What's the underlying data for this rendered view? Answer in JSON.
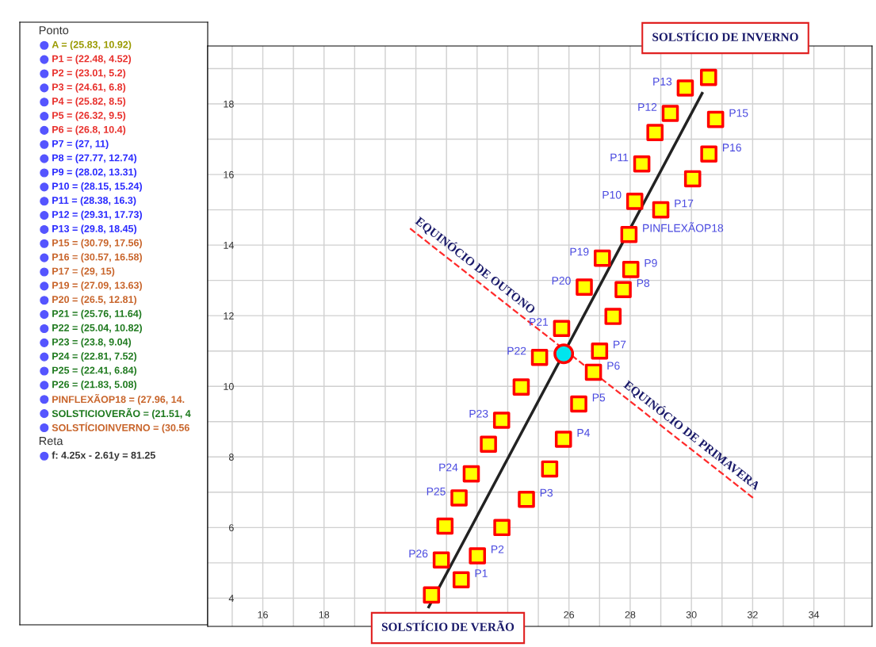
{
  "chart_data": [
    {
      "type": "other",
      "categories": [
        "Ponto",
        "A = (25.83, 10.92)",
        "P1 = (22.48, 4.52)",
        "P2 = (23.01, 5.2)",
        "P3 = (24.61, 6.8)",
        "P4 = (25.82, 8.5)",
        "P5 = (26.32, 9.5)",
        "P6 = (26.8, 10.4)",
        "P7 = (27, 11)",
        "P8 = (27.77, 12.74)",
        "P9 = (28.02, 13.31)",
        "P10 = (28.15, 15.24)",
        "P11 = (28.38, 16.3)",
        "P12 = (29.31, 17.73)",
        "P13 = (29.8, 18.45)",
        "P15 = (30.79, 17.56)",
        "P16 = (30.57, 16.58)",
        "P17 = (29, 15)",
        "P19 = (27.09, 13.63)",
        "P20 = (26.5, 12.81)",
        "P21 = (25.76, 11.64)",
        "P22 = (25.04, 10.82)",
        "P23 = (23.8, 9.04)",
        "P24 = (22.81, 7.52)",
        "P25 = (22.41, 6.84)",
        "P26 = (21.83, 5.08)",
        "PINFLEXÃOP18 = (27.96, 14.",
        "SOLSTICIOVERÃO = (21.51, 4",
        "SOLSTÍCIOINVERNO = (30.56",
        "Reta",
        "f: 4.25x - 2.61y = 81.25"
      ],
      "colors": [
        "#333333",
        "#9a9a00",
        "#e8302c",
        "#e8302c",
        "#e8302c",
        "#e8302c",
        "#e8302c",
        "#e8302c",
        "#2a2aff",
        "#2a2aff",
        "#2a2aff",
        "#2a2aff",
        "#2a2aff",
        "#2a2aff",
        "#2a2aff",
        "#c8642a",
        "#c8642a",
        "#c8642a",
        "#c8642a",
        "#c8642a",
        "#1f7a1f",
        "#1f7a1f",
        "#1f7a1f",
        "#1f7a1f",
        "#1f7a1f",
        "#1f7a1f",
        "#c8642a",
        "#1f7a1f",
        "#c8642a",
        "#333333",
        "#333333"
      ]
    },
    {
      "type": "scatter",
      "xlim": [
        14.2,
        35.9
      ],
      "ylim": [
        3.2,
        19.64
      ],
      "xticks": [
        {
          "value": 15,
          "label": null
        },
        16,
        {
          "value": 17,
          "label": null
        },
        18,
        {
          "value": 19,
          "label": null
        },
        {
          "value": 20,
          "label": null
        },
        {
          "value": 21,
          "label": null
        },
        {
          "value": 22,
          "label": null
        },
        {
          "value": 23,
          "label": null
        },
        {
          "value": 24,
          "label": null
        },
        {
          "value": 25,
          "label": null
        },
        26,
        {
          "value": 27,
          "label": null
        },
        28,
        {
          "value": 29,
          "label": null
        },
        30,
        {
          "value": 31,
          "label": null
        },
        32,
        {
          "value": 33,
          "label": null
        },
        34,
        {
          "value": 35,
          "label": null
        }
      ],
      "yticks": [
        4,
        {
          "value": 5,
          "label": null
        },
        6,
        {
          "value": 7,
          "label": null
        },
        8,
        {
          "value": 9,
          "label": null
        },
        10,
        {
          "value": 11,
          "label": null
        },
        12,
        {
          "value": 13,
          "label": null
        },
        14,
        {
          "value": 15,
          "label": null
        },
        16,
        {
          "value": 17,
          "label": null
        },
        18,
        {
          "value": 19,
          "label": null
        }
      ],
      "grid": true,
      "series": [
        {
          "type": "line",
          "color": "#222222",
          "line_style": "solid",
          "x": [
            21.42,
            30.35
          ],
          "values": [
            3.75,
            18.3
          ]
        },
        {
          "type": "line",
          "color": "#ff2a2a",
          "line_style": "dashed",
          "x": [
            20.81,
            32.03
          ],
          "values": [
            14.47,
            6.83
          ]
        },
        {
          "type": "scatter",
          "marker": "square",
          "color": "#ffff00",
          "x": [
            21.51,
            22.48,
            23.01,
            21.83,
            21.95,
            23.81,
            24.61,
            22.41,
            22.81,
            25.37,
            25.82,
            23.37,
            23.8,
            26.32,
            24.44,
            26.8,
            25.04,
            27,
            25.76,
            27.44,
            26.5,
            27.77,
            28.02,
            27.09,
            27.96,
            29,
            28.15,
            30.04,
            28.38,
            30.57,
            28.81,
            30.79,
            29.31,
            29.8,
            30.56
          ],
          "values": [
            4.09,
            4.52,
            5.2,
            5.08,
            6.04,
            6.0,
            6.8,
            6.84,
            7.52,
            7.66,
            8.5,
            8.36,
            9.04,
            9.5,
            9.98,
            10.4,
            10.82,
            11,
            11.64,
            11.98,
            12.81,
            12.74,
            13.31,
            13.63,
            14.3,
            15,
            15.24,
            15.88,
            16.3,
            16.58,
            17.19,
            17.56,
            17.73,
            18.45,
            18.75
          ],
          "value_labels": [
            null,
            "P1",
            "P2",
            "P26",
            null,
            null,
            "P3",
            "P25",
            "P24",
            null,
            "P4",
            null,
            "P23",
            "P5",
            null,
            "P6",
            "P22",
            "P7",
            "P21",
            null,
            "P20",
            "P8",
            "P9",
            "P19",
            "PINFLEXÃOP18",
            "P17",
            "P10",
            null,
            "P11",
            "P16",
            null,
            "P15",
            "P12",
            "P13",
            null
          ]
        },
        {
          "type": "scatter",
          "marker": "circle",
          "color": "#00e5ee",
          "x": [
            25.83
          ],
          "values": [
            10.92
          ]
        }
      ],
      "annotations": [
        "SOLSTÍCIO DE INVERNO",
        "SOLSTÍCIO DE VERÃO",
        "EQUINÓCIO DE OUTONO",
        "EQUINÓCIO DE PRIMAVERA"
      ]
    }
  ]
}
